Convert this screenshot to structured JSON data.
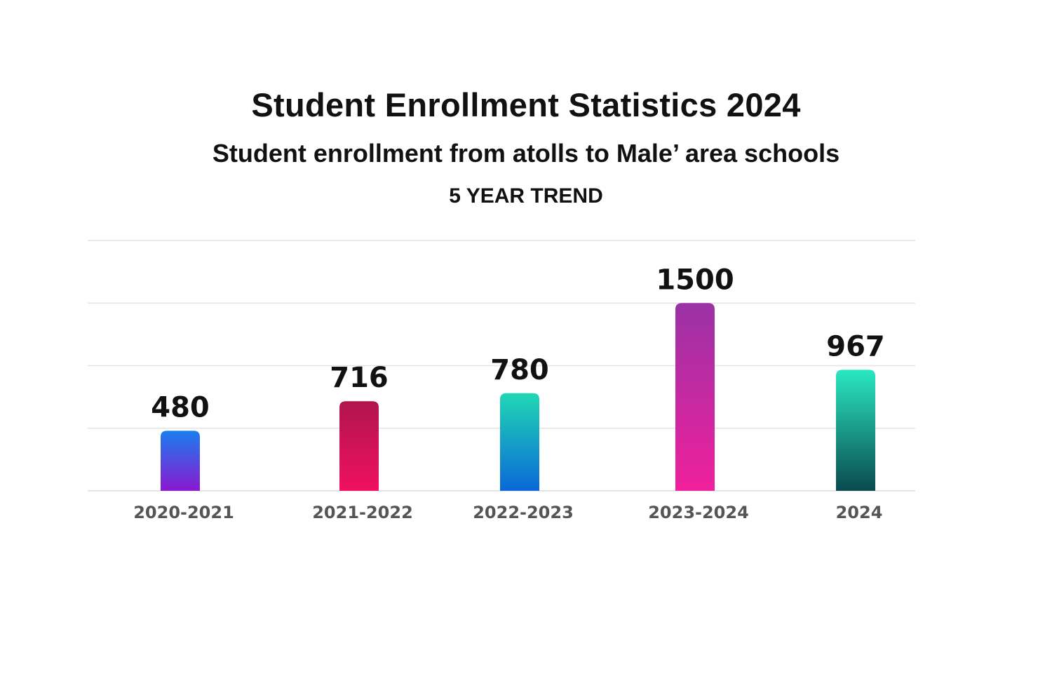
{
  "chart_data": {
    "type": "bar",
    "title": "Student Enrollment Statistics 2024",
    "subtitle": "Student enrollment from atolls to Male’ area schools",
    "trend_label": "5 YEAR TREND",
    "categories": [
      "2020-2021",
      "2021-2022",
      "2022-2023",
      "2023-2024",
      "2024"
    ],
    "values": [
      480,
      716,
      780,
      1500,
      967
    ],
    "xlabel": "",
    "ylabel": "",
    "ylim": [
      0,
      2000
    ],
    "grid": true,
    "bar_colors": [
      [
        "#1a7ef0",
        "#8a18d0"
      ],
      [
        "#b0154c",
        "#f01060"
      ],
      [
        "#20d8b4",
        "#0a68d8"
      ],
      [
        "#9a32a6",
        "#f0209c"
      ],
      [
        "#2ae8c2",
        "#0a4a4e"
      ]
    ],
    "grid_color": "#e4e4e4",
    "label_color": "#555555"
  }
}
